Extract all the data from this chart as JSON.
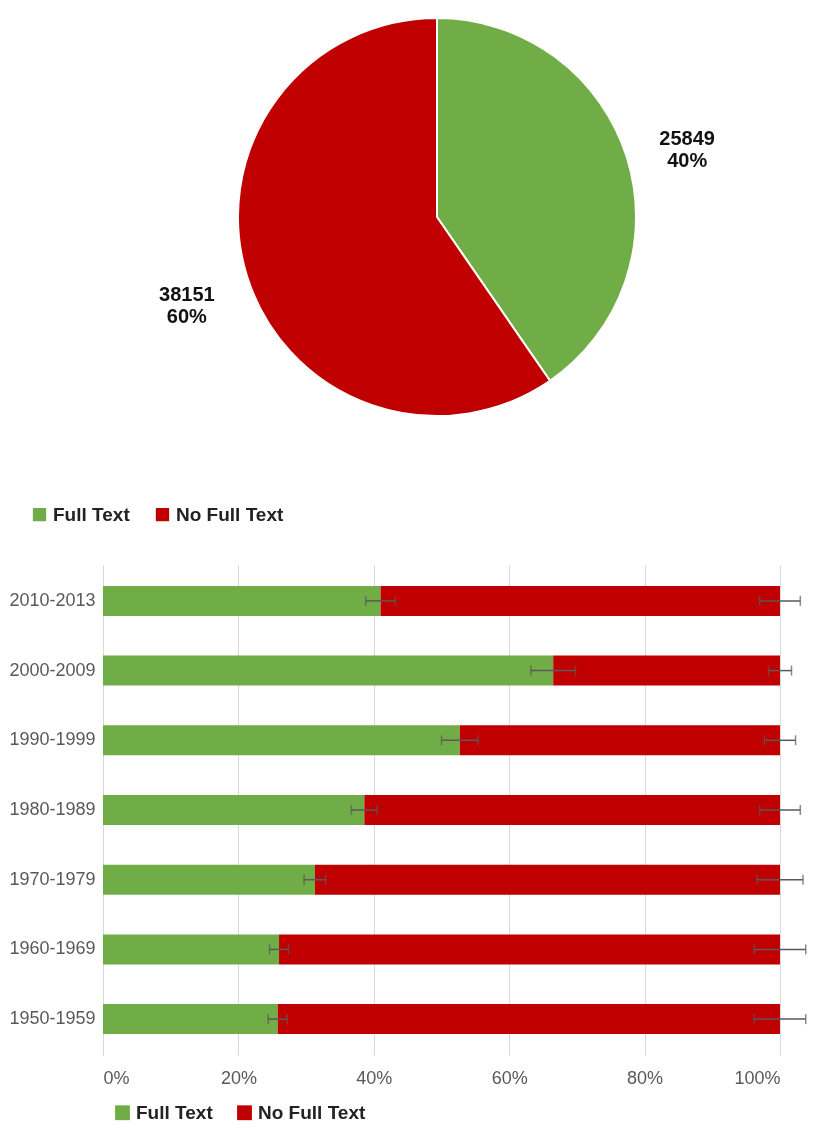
{
  "chart_data": [
    {
      "type": "pie",
      "categories": [
        "Full Text",
        "No Full Text"
      ],
      "values": [
        25849,
        38151
      ],
      "colors": [
        "#70ad47",
        "#c00000"
      ],
      "value_labels": [
        "25849\n40%",
        "38151\n60%"
      ],
      "legend": "bottom"
    },
    {
      "type": "bar",
      "orientation": "horizontal",
      "stacked": true,
      "categories": [
        "2010-2013",
        "2000-2009",
        "1990-1999",
        "1980-1989",
        "1970-1979",
        "1960-1969",
        "1950-1959"
      ],
      "series": [
        {
          "name": "Full Text",
          "color": "#70ad47",
          "values": [
            41,
            66.5,
            52.7,
            38.6,
            31.3,
            26,
            25.8
          ],
          "errors": [
            2.2,
            3.3,
            2.7,
            1.9,
            1.6,
            1.4,
            1.4
          ]
        },
        {
          "name": "No Full Text",
          "color": "#c00000",
          "values": [
            59,
            33.5,
            47.3,
            61.4,
            68.7,
            74,
            74.2
          ],
          "errors": [
            3,
            1.7,
            2.3,
            3,
            3.4,
            3.8,
            3.8
          ]
        }
      ],
      "xlim": [
        0,
        100
      ],
      "xticks": [
        {
          "value": 0,
          "label": "0%"
        },
        {
          "value": 20,
          "label": "20%"
        },
        {
          "value": 40,
          "label": "40%"
        },
        {
          "value": 60,
          "label": "60%"
        },
        {
          "value": 80,
          "label": "80%"
        },
        {
          "value": 100,
          "label": "100%"
        }
      ],
      "grid": "x",
      "legend": "bottom"
    }
  ]
}
